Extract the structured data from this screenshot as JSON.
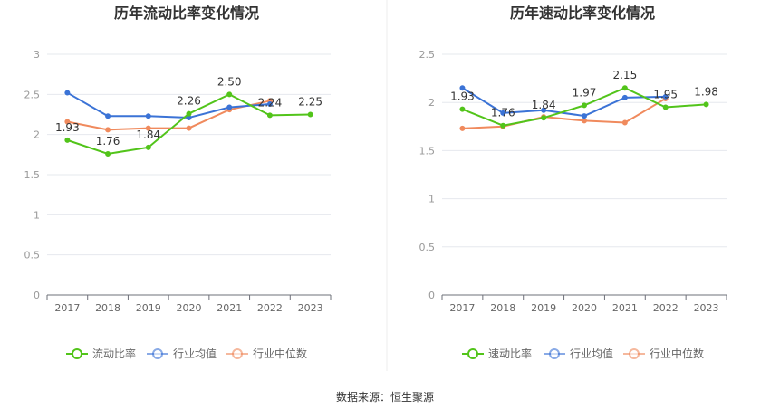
{
  "source_text": "数据来源：恒生聚源",
  "chart_data": [
    {
      "type": "line",
      "title": "历年流动比率变化情况",
      "categories": [
        "2017",
        "2018",
        "2019",
        "2020",
        "2021",
        "2022",
        "2023"
      ],
      "ylim": [
        0,
        3
      ],
      "yticks": [
        "0",
        "0.5",
        "1",
        "1.5",
        "2",
        "2.5",
        "3"
      ],
      "grid": true,
      "legend_position": "bottom",
      "series": [
        {
          "name": "流动比率",
          "color": "#52c41a",
          "values": [
            1.93,
            1.76,
            1.84,
            2.26,
            2.5,
            2.24,
            2.25
          ],
          "labels": [
            "1.93",
            "1.76",
            "1.84",
            "2.26",
            "2.50",
            "2.24",
            "2.25"
          ]
        },
        {
          "name": "行业均值",
          "color": "#3b73d6",
          "values": [
            2.52,
            2.23,
            2.23,
            2.21,
            2.34,
            2.38,
            null
          ]
        },
        {
          "name": "行业中位数",
          "color": "#f08a5d",
          "values": [
            2.16,
            2.06,
            2.08,
            2.08,
            2.31,
            2.42,
            null
          ]
        }
      ]
    },
    {
      "type": "line",
      "title": "历年速动比率变化情况",
      "categories": [
        "2017",
        "2018",
        "2019",
        "2020",
        "2021",
        "2022",
        "2023"
      ],
      "ylim": [
        0,
        2.5
      ],
      "yticks": [
        "0",
        "0.5",
        "1",
        "1.5",
        "2",
        "2.5"
      ],
      "grid": true,
      "legend_position": "bottom",
      "series": [
        {
          "name": "速动比率",
          "color": "#52c41a",
          "values": [
            1.93,
            1.76,
            1.84,
            1.97,
            2.15,
            1.95,
            1.98
          ],
          "labels": [
            "1.93",
            "1.76",
            "1.84",
            "1.97",
            "2.15",
            "1.95",
            "1.98"
          ]
        },
        {
          "name": "行业均值",
          "color": "#3b73d6",
          "values": [
            2.15,
            1.89,
            1.92,
            1.86,
            2.05,
            2.06,
            null
          ]
        },
        {
          "name": "行业中位数",
          "color": "#f08a5d",
          "values": [
            1.73,
            1.75,
            1.85,
            1.81,
            1.79,
            2.04,
            null
          ]
        }
      ]
    }
  ]
}
